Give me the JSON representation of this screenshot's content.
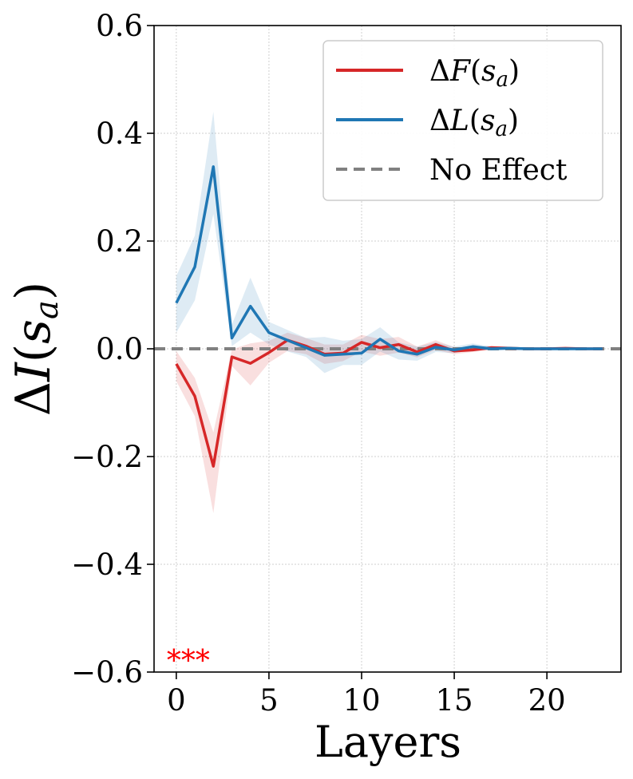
{
  "chart_data": {
    "type": "line",
    "title": "",
    "xlabel": "Layers",
    "ylabel": "ΔI(s_a)",
    "ylabel_parts": {
      "delta": "Δ",
      "var": "I",
      "open": "(",
      "s": "s",
      "sub": "a",
      "close": ")"
    },
    "xlim": [
      -1.2,
      24
    ],
    "ylim": [
      -0.6,
      0.6
    ],
    "xticks": [
      0,
      5,
      10,
      15,
      20
    ],
    "xtick_labels": [
      "0",
      "5",
      "10",
      "15",
      "20"
    ],
    "yticks": [
      0.6,
      0.4,
      0.2,
      0.0,
      -0.2,
      -0.4,
      -0.6
    ],
    "ytick_labels": [
      "0.6",
      "0.4",
      "0.2",
      "0.0",
      "−0.2",
      "−0.4",
      "−0.6"
    ],
    "grid": true,
    "legend_position": "top-right",
    "x": [
      0,
      1,
      2,
      3,
      4,
      5,
      6,
      7,
      8,
      9,
      10,
      11,
      12,
      13,
      14,
      15,
      16,
      17,
      18,
      19,
      20,
      21,
      22,
      23
    ],
    "series": [
      {
        "name": "ΔF(s_a)",
        "label_parts": {
          "delta": "Δ",
          "var": "F",
          "open": "(",
          "s": "s",
          "sub": "a",
          "close": ")"
        },
        "color": "#d62728",
        "values": [
          -0.028,
          -0.088,
          -0.218,
          -0.015,
          -0.027,
          -0.007,
          0.016,
          0.005,
          -0.01,
          -0.008,
          0.012,
          0.002,
          0.008,
          -0.006,
          0.008,
          -0.004,
          -0.002,
          0.002,
          0.001,
          0.0,
          0.0,
          0.001,
          0.0,
          0.0
        ],
        "lower": [
          -0.06,
          -0.125,
          -0.305,
          -0.032,
          -0.068,
          -0.026,
          -0.004,
          -0.01,
          -0.028,
          -0.023,
          -0.005,
          -0.013,
          -0.007,
          -0.016,
          -0.002,
          -0.01,
          -0.006,
          -0.002,
          -0.002,
          -0.002,
          -0.002,
          -0.002,
          -0.002,
          -0.002
        ],
        "upper": [
          -0.004,
          -0.054,
          -0.155,
          -0.001,
          0.01,
          0.015,
          0.03,
          0.02,
          0.008,
          0.008,
          0.026,
          0.018,
          0.022,
          0.004,
          0.016,
          0.003,
          0.003,
          0.006,
          0.004,
          0.002,
          0.002,
          0.003,
          0.002,
          0.002
        ]
      },
      {
        "name": "ΔL(s_a)",
        "label_parts": {
          "delta": "Δ",
          "var": "L",
          "open": "(",
          "s": "s",
          "sub": "a",
          "close": ")"
        },
        "color": "#1f77b4",
        "values": [
          0.085,
          0.152,
          0.338,
          0.02,
          0.079,
          0.03,
          0.016,
          0.002,
          -0.012,
          -0.01,
          -0.008,
          0.018,
          -0.004,
          -0.01,
          0.003,
          -0.002,
          0.004,
          0.0,
          0.001,
          0.0,
          0.0,
          0.0,
          0.0,
          0.0
        ],
        "lower": [
          0.03,
          0.09,
          0.25,
          0.005,
          0.03,
          0.008,
          -0.005,
          -0.015,
          -0.045,
          -0.03,
          -0.03,
          -0.005,
          -0.02,
          -0.022,
          -0.006,
          -0.008,
          -0.002,
          -0.003,
          -0.002,
          -0.002,
          -0.002,
          -0.002,
          -0.002,
          -0.002
        ],
        "upper": [
          0.135,
          0.21,
          0.44,
          0.045,
          0.132,
          0.05,
          0.035,
          0.02,
          0.022,
          0.015,
          0.018,
          0.04,
          0.012,
          0.004,
          0.012,
          0.004,
          0.01,
          0.004,
          0.004,
          0.002,
          0.002,
          0.002,
          0.002,
          0.002
        ]
      }
    ],
    "reference_line": {
      "name": "No Effect",
      "y": 0.0,
      "color": "#808080"
    },
    "annotation": {
      "text": "***",
      "color": "#ff0000",
      "x": 0,
      "y": -0.57
    }
  }
}
